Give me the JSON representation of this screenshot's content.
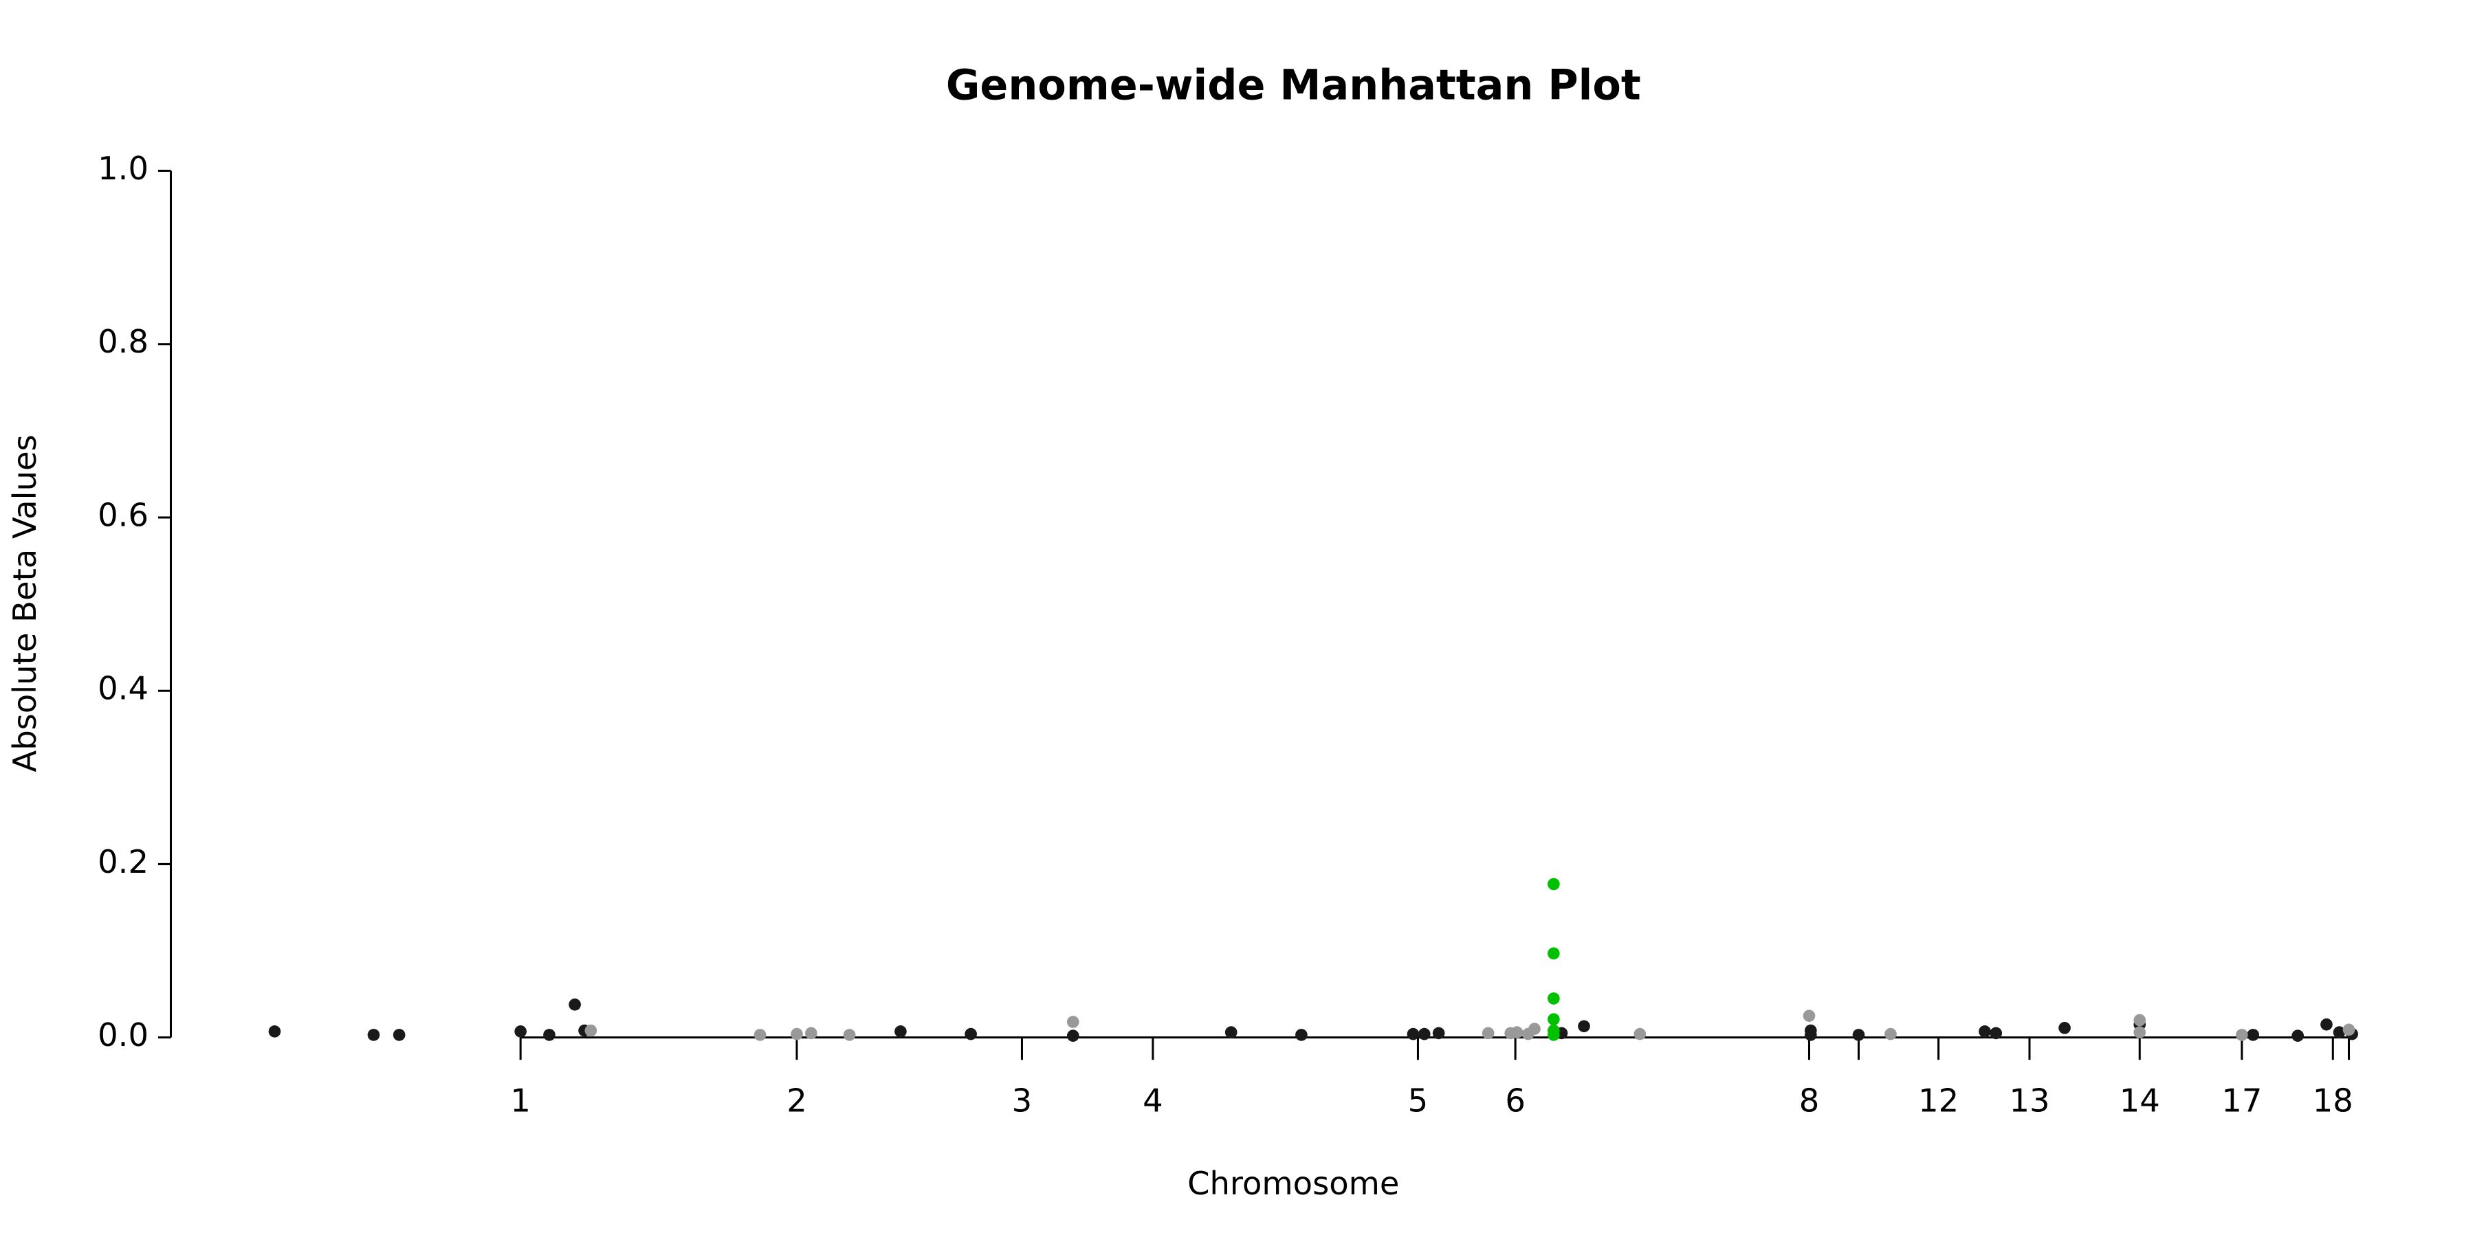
{
  "chart_data": {
    "type": "scatter",
    "title": "Genome-wide Manhattan Plot",
    "x_label": "Chromosome",
    "y_label": "Absolute Beta Values",
    "xlim": [
      0,
      1373
    ],
    "ylim": [
      0,
      1.0
    ],
    "xticks": [
      {
        "value": 219,
        "label": "1"
      },
      {
        "value": 392,
        "label": "2"
      },
      {
        "value": 533,
        "label": "3"
      },
      {
        "value": 615,
        "label": "4"
      },
      {
        "value": 781,
        "label": "5"
      },
      {
        "value": 842,
        "label": "6"
      },
      {
        "value": 1026,
        "label": "8"
      },
      {
        "value": 1057,
        "label": null
      },
      {
        "value": 1107,
        "label": "12"
      },
      {
        "value": 1164,
        "label": "13"
      },
      {
        "value": 1233,
        "label": "14"
      },
      {
        "value": 1297,
        "label": "17"
      },
      {
        "value": 1354,
        "label": "18"
      },
      {
        "value": 1364,
        "label": null
      }
    ],
    "yticks": [
      {
        "value": 0,
        "label": "0.0"
      },
      {
        "value": 0.2,
        "label": "0.2"
      },
      {
        "value": 0.4,
        "label": "0.4"
      },
      {
        "value": 0.6,
        "label": "0.6"
      },
      {
        "value": 0.8,
        "label": "0.8"
      },
      {
        "value": 1.0,
        "label": "1.0"
      }
    ],
    "series": [
      {
        "color": "#1a1a1a",
        "x": [
          65,
          127,
          143,
          219,
          237,
          253,
          259,
          457,
          501,
          565,
          664,
          708,
          778,
          785,
          794,
          871,
          885,
          1027,
          1027,
          1057,
          1136,
          1143,
          1186,
          1233,
          1304,
          1332,
          1350,
          1358,
          1366
        ],
        "values": [
          0.007,
          0.003,
          0.003,
          0.007,
          0.003,
          0.038,
          0.008,
          0.007,
          0.004,
          0.002,
          0.006,
          0.003,
          0.004,
          0.004,
          0.005,
          0.005,
          0.013,
          0.008,
          0.003,
          0.003,
          0.007,
          0.005,
          0.011,
          0.015,
          0.003,
          0.002,
          0.015,
          0.006,
          0.004
        ]
      },
      {
        "color": "#999999",
        "x": [
          263,
          369,
          392,
          401,
          425,
          565,
          825,
          839,
          843,
          850,
          854,
          920,
          1026,
          1077,
          1233,
          1233,
          1297,
          1364
        ],
        "values": [
          0.008,
          0.003,
          0.004,
          0.005,
          0.003,
          0.018,
          0.005,
          0.005,
          0.006,
          0.004,
          0.01,
          0.004,
          0.025,
          0.004,
          0.02,
          0.006,
          0.003,
          0.009
        ]
      },
      {
        "color": "#00c000",
        "x": [
          866,
          866,
          866,
          866,
          866,
          866
        ],
        "values": [
          0.177,
          0.097,
          0.045,
          0.021,
          0.008,
          0.003
        ]
      }
    ]
  }
}
